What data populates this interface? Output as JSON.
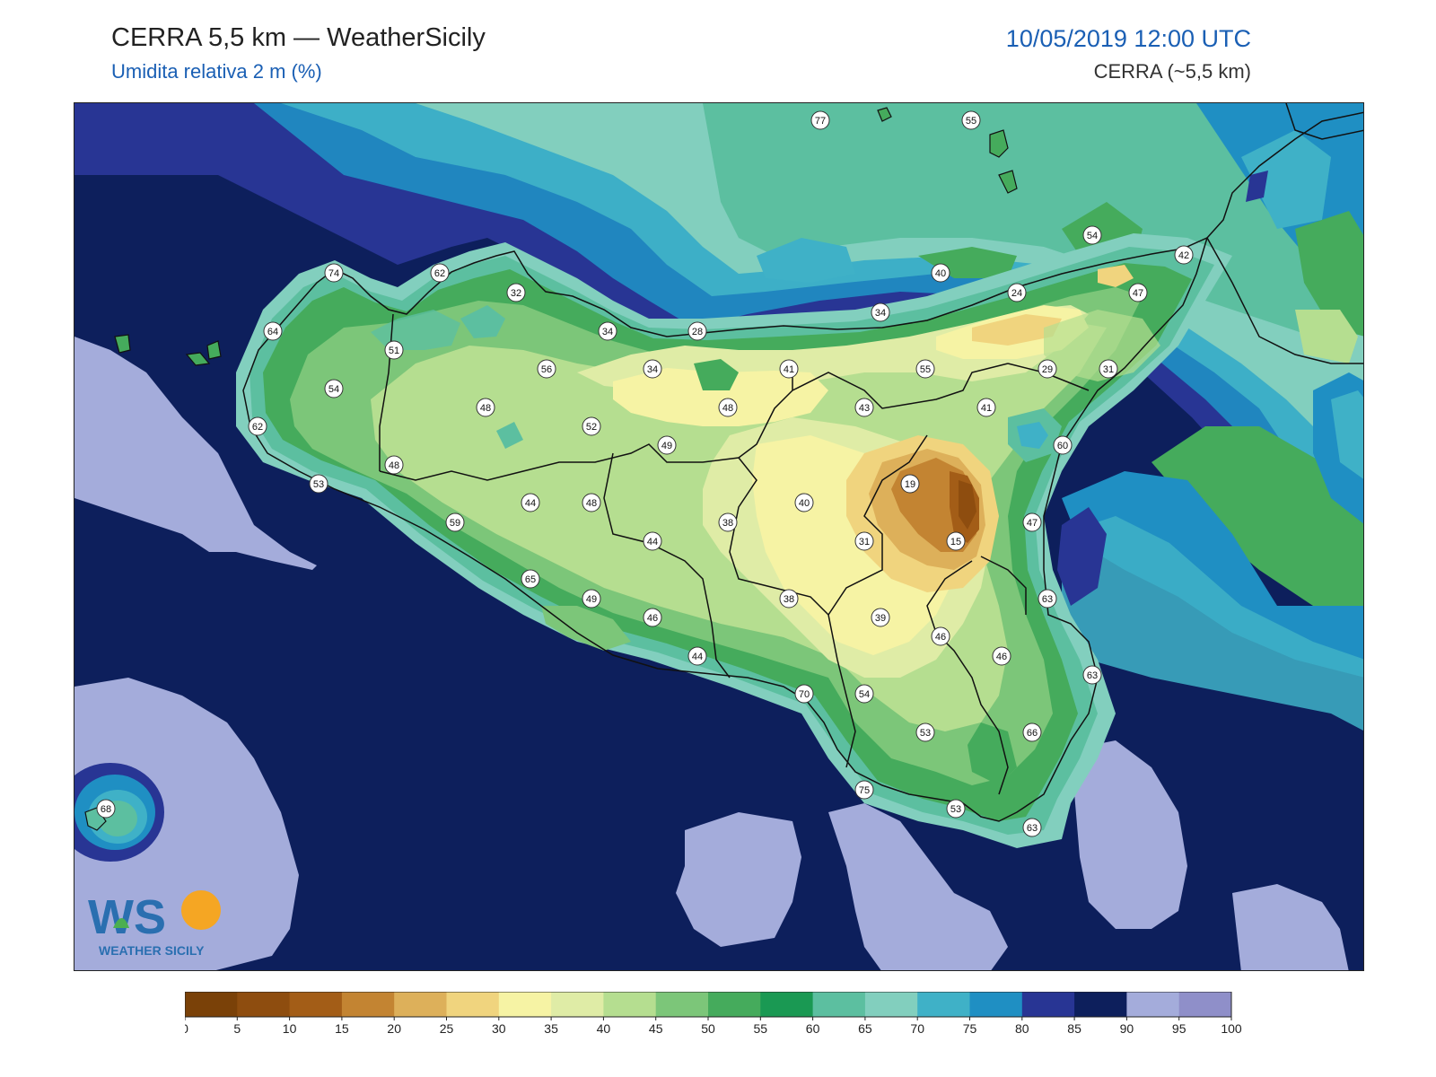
{
  "header": {
    "title": "CERRA 5,5 km — WeatherSicily",
    "subtitle": "Umidita relativa 2 m (%)",
    "datetime": "10/05/2019 12:00 UTC",
    "source": "CERRA (~5,5 km)"
  },
  "logo": {
    "text_big": "WS",
    "text_small": "WEATHER SICILY"
  },
  "legend": {
    "ticks": [
      "0",
      "5",
      "10",
      "15",
      "20",
      "25",
      "30",
      "35",
      "40",
      "45",
      "50",
      "55",
      "60",
      "65",
      "70",
      "75",
      "80",
      "85",
      "90",
      "95",
      "100"
    ],
    "colors": [
      "#7a4108",
      "#8e4d0f",
      "#a35d17",
      "#c38432",
      "#ddb05a",
      "#f0d47e",
      "#f6f3a4",
      "#dfeca6",
      "#b5de90",
      "#7cc679",
      "#45ab5c",
      "#1a9953",
      "#5cbfa0",
      "#82cfbe",
      "#3fb1c7",
      "#1f8fc3",
      "#283594",
      "#0d1f5c",
      "#a4acdb",
      "#8f8fc9"
    ]
  },
  "map": {
    "sea_color": "#0d1f5c",
    "stations": [
      {
        "v": "77"
      },
      {
        "v": "55"
      },
      {
        "v": "74"
      },
      {
        "v": "62"
      },
      {
        "v": "32"
      },
      {
        "v": "54"
      },
      {
        "v": "42"
      },
      {
        "v": "40"
      },
      {
        "v": "24"
      },
      {
        "v": "47"
      },
      {
        "v": "64"
      },
      {
        "v": "51"
      },
      {
        "v": "34"
      },
      {
        "v": "28"
      },
      {
        "v": "34"
      },
      {
        "v": "54"
      },
      {
        "v": "56"
      },
      {
        "v": "34"
      },
      {
        "v": "41"
      },
      {
        "v": "55"
      },
      {
        "v": "29"
      },
      {
        "v": "31"
      },
      {
        "v": "48"
      },
      {
        "v": "48"
      },
      {
        "v": "43"
      },
      {
        "v": "41"
      },
      {
        "v": "62"
      },
      {
        "v": "52"
      },
      {
        "v": "49"
      },
      {
        "v": "60"
      },
      {
        "v": "48"
      },
      {
        "v": "53"
      },
      {
        "v": "19"
      },
      {
        "v": "44"
      },
      {
        "v": "48"
      },
      {
        "v": "40"
      },
      {
        "v": "59"
      },
      {
        "v": "38"
      },
      {
        "v": "47"
      },
      {
        "v": "44"
      },
      {
        "v": "31"
      },
      {
        "v": "15"
      },
      {
        "v": "65"
      },
      {
        "v": "49"
      },
      {
        "v": "38"
      },
      {
        "v": "63"
      },
      {
        "v": "46"
      },
      {
        "v": "39"
      },
      {
        "v": "46"
      },
      {
        "v": "44"
      },
      {
        "v": "46"
      },
      {
        "v": "63"
      },
      {
        "v": "70"
      },
      {
        "v": "54"
      },
      {
        "v": "53"
      },
      {
        "v": "66"
      },
      {
        "v": "75"
      },
      {
        "v": "68"
      },
      {
        "v": "53"
      },
      {
        "v": "63"
      }
    ]
  }
}
